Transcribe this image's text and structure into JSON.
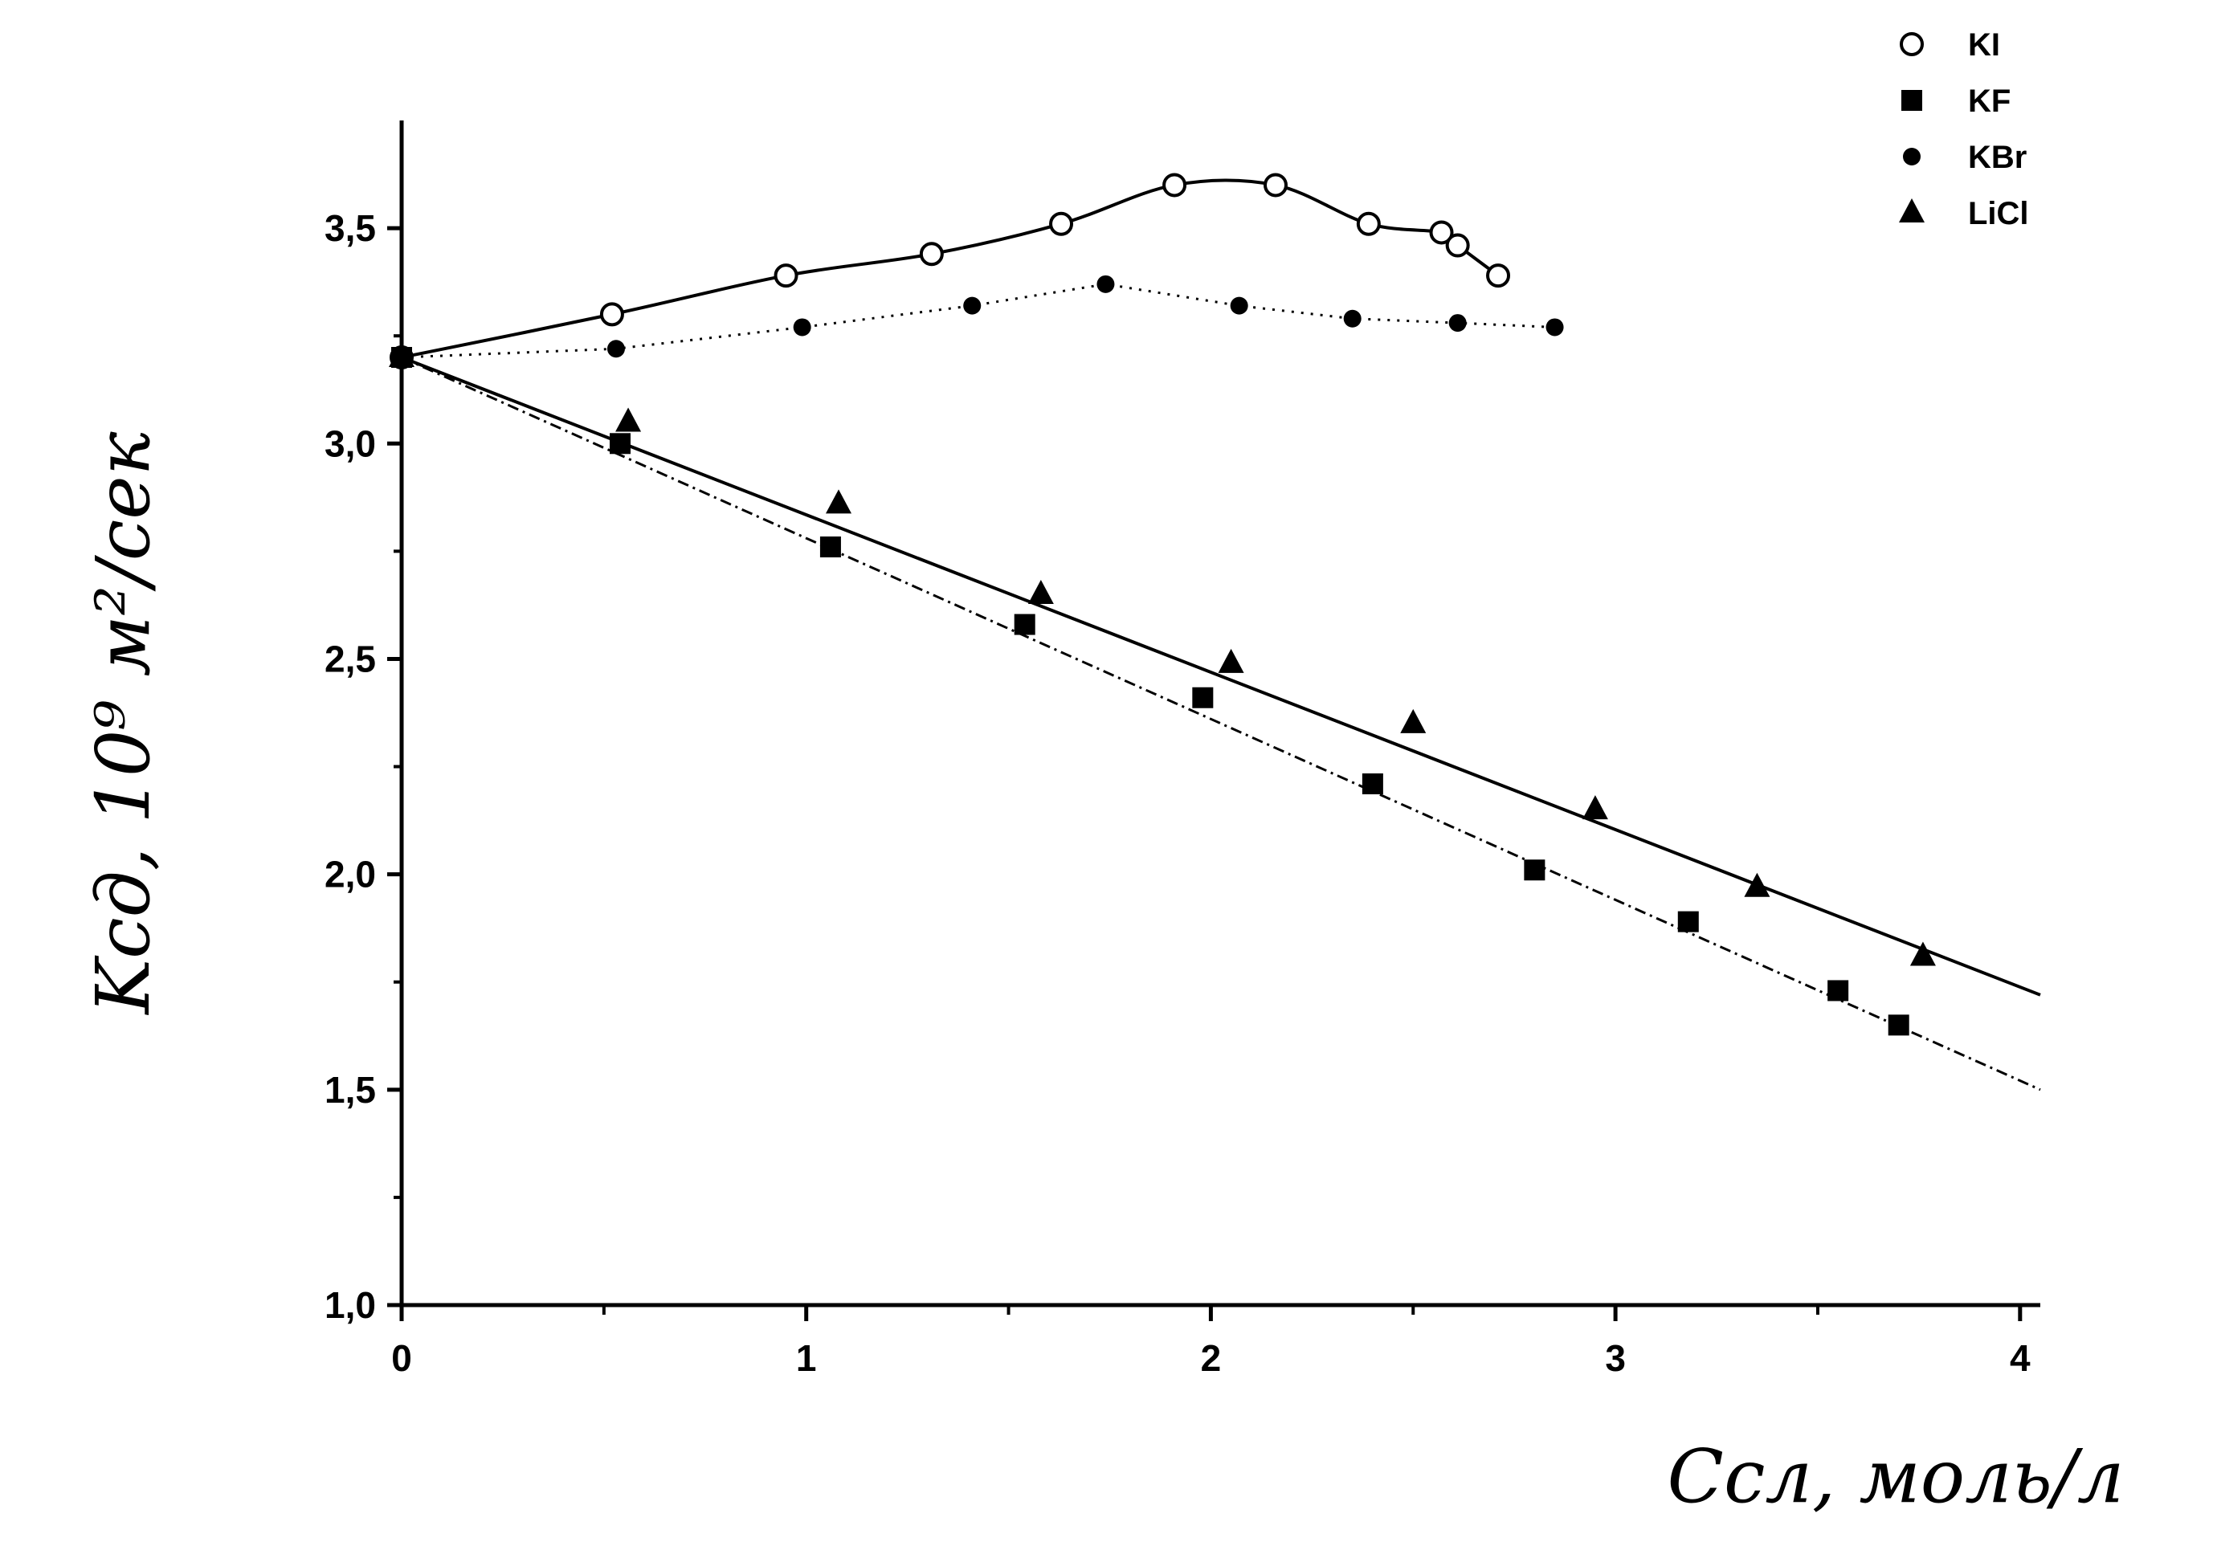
{
  "chart_data": {
    "type": "scatter",
    "title": "",
    "xlabel": "Cсл, моль/л",
    "ylabel": "Kсд, 10⁹ м²/сек",
    "xlim": [
      0,
      4.05
    ],
    "ylim": [
      1.0,
      3.75
    ],
    "x_ticks": [
      "0",
      "1",
      "2",
      "3",
      "4"
    ],
    "x_tick_values": [
      0,
      1,
      2,
      3,
      4
    ],
    "y_ticks": [
      "1,0",
      "1,5",
      "2,0",
      "2,5",
      "3,0",
      "3,5"
    ],
    "y_tick_values": [
      1.0,
      1.5,
      2.0,
      2.5,
      3.0,
      3.5
    ],
    "grid": false,
    "legend_position": "top-right",
    "series": [
      {
        "name": "KI",
        "marker": "open-circle",
        "line": "solid-smooth",
        "x": [
          0,
          0.52,
          0.95,
          1.31,
          1.63,
          1.91,
          2.16,
          2.39,
          2.57,
          2.61,
          2.71
        ],
        "y": [
          3.2,
          3.3,
          3.39,
          3.44,
          3.51,
          3.6,
          3.6,
          3.51,
          3.49,
          3.46,
          3.39
        ]
      },
      {
        "name": "KF",
        "marker": "filled-square",
        "line": "dash-dot",
        "x": [
          0,
          0.54,
          1.06,
          1.54,
          1.98,
          2.4,
          2.8,
          3.18,
          3.55,
          3.7
        ],
        "y": [
          3.2,
          3.0,
          2.76,
          2.58,
          2.41,
          2.21,
          2.01,
          1.89,
          1.73,
          1.65
        ]
      },
      {
        "name": "KBr",
        "marker": "filled-circle",
        "line": "dotted",
        "x": [
          0,
          0.53,
          0.99,
          1.41,
          1.74,
          2.07,
          2.35,
          2.61,
          2.85
        ],
        "y": [
          3.2,
          3.22,
          3.27,
          3.32,
          3.37,
          3.32,
          3.29,
          3.28,
          3.27
        ]
      },
      {
        "name": "LiCl",
        "marker": "filled-triangle",
        "line": "solid",
        "x": [
          0,
          0.56,
          1.08,
          1.58,
          2.05,
          2.5,
          2.95,
          3.35,
          3.76
        ],
        "y": [
          3.2,
          3.05,
          2.86,
          2.65,
          2.49,
          2.35,
          2.15,
          1.97,
          1.81
        ]
      }
    ],
    "fit_lines": {
      "LiCl": {
        "x": [
          0,
          4.05
        ],
        "y": [
          3.2,
          1.72
        ]
      },
      "KF": {
        "x": [
          0,
          4.05
        ],
        "y": [
          3.2,
          1.5
        ]
      }
    }
  }
}
